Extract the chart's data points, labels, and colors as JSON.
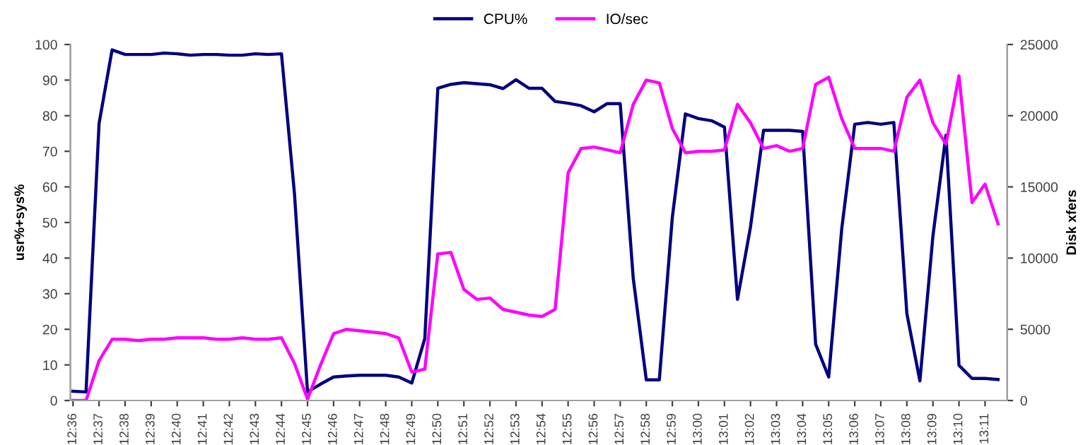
{
  "chart_data": {
    "type": "line",
    "categories": [
      "12:36",
      null,
      "12:37",
      null,
      "12:38",
      null,
      "12:39",
      null,
      "12:40",
      null,
      "12:41",
      null,
      "12:42",
      null,
      "12:43",
      null,
      "12:44",
      null,
      "12:45",
      null,
      "12:46",
      null,
      "12:47",
      null,
      "12:48",
      null,
      "12:49",
      null,
      "12:50",
      null,
      "12:51",
      null,
      "12:52",
      null,
      "12:53",
      null,
      "12:54",
      null,
      "12:55",
      null,
      "12:56",
      null,
      "12:57",
      null,
      "12:58",
      null,
      "12:59",
      null,
      "13:00",
      null,
      "13:01",
      null,
      "13:02",
      null,
      "13:03",
      null,
      "13:04",
      null,
      "13:05",
      null,
      "13:06",
      null,
      "13:07",
      null,
      "13:08",
      null,
      "13:09",
      null,
      "13:10",
      null,
      "13:11",
      null
    ],
    "series": [
      {
        "name": "CPU%",
        "color": "#000080",
        "values": [
          2.6,
          2.4,
          77.8,
          98.5,
          97.2,
          97.2,
          97.2,
          97.6,
          97.4,
          97.0,
          97.2,
          97.2,
          97.0,
          97.0,
          97.4,
          97.2,
          97.4,
          58,
          2.4,
          4.6,
          6.6,
          6.9,
          7.1,
          7.1,
          7.1,
          6.6,
          4.9,
          17.4,
          87.7,
          88.8,
          89.3,
          89.0,
          88.7,
          87.6,
          90.1,
          87.7,
          87.7,
          84.0,
          83.5,
          82.8,
          81.1,
          83.4,
          83.4,
          34.3,
          5.8,
          5.8,
          51.5,
          80.5,
          79.2,
          78.6,
          76.8,
          28.4,
          48.8,
          75.9,
          75.9,
          75.9,
          75.6,
          15.8,
          6.6,
          48.2,
          77.6,
          78.1,
          77.6,
          78.1,
          24.4,
          5.5,
          46.2,
          74.5,
          9.9,
          6.2,
          6.2,
          5.9
        ]
      },
      {
        "name": "IO/sec",
        "color": "#ff00ff",
        "axis": "y2",
        "values": [
          0,
          0,
          2800,
          4300,
          4300,
          4200,
          4300,
          4300,
          4400,
          4400,
          4400,
          4300,
          4300,
          4400,
          4300,
          4300,
          4400,
          2600,
          100,
          2500,
          4700,
          5000,
          4900,
          4800,
          4700,
          4400,
          2000,
          2200,
          10300,
          10400,
          7800,
          7100,
          7200,
          6400,
          6200,
          6000,
          5900,
          6400,
          16000,
          17700,
          17800,
          17600,
          17400,
          20800,
          22500,
          22300,
          19100,
          17400,
          17500,
          17500,
          17600,
          20800,
          19500,
          17700,
          17900,
          17500,
          17700,
          22200,
          22700,
          19800,
          17700,
          17700,
          17700,
          17500,
          21300,
          22500,
          19500,
          18000,
          22800,
          13900,
          15200,
          12400
        ]
      }
    ],
    "ylabel": "usr%+sys%",
    "y2label": "Disk xfers",
    "ylim": [
      0,
      100
    ],
    "yticks": [
      0,
      10,
      20,
      30,
      40,
      50,
      60,
      70,
      80,
      90,
      100
    ],
    "y2lim": [
      0,
      25000
    ],
    "y2ticks": [
      0,
      5000,
      10000,
      15000,
      20000,
      25000
    ],
    "legend": "top",
    "grid": false,
    "marker": "none",
    "line_style": "solid"
  }
}
